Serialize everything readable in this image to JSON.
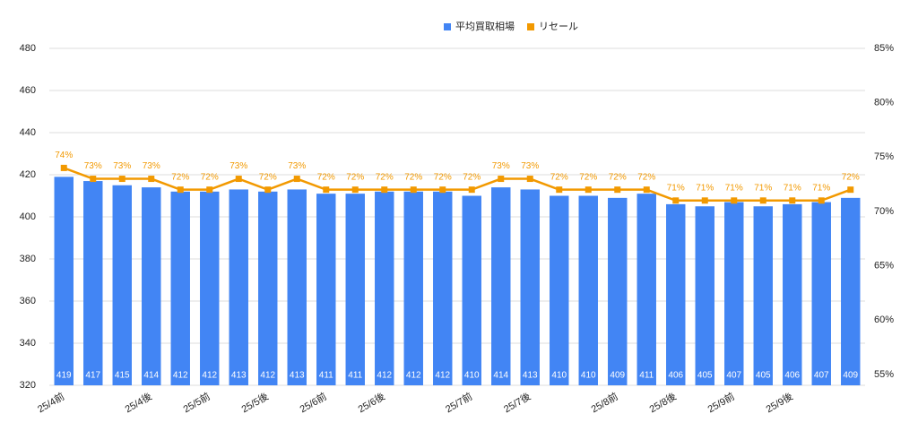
{
  "chart_data": {
    "type": "bar_line",
    "categories": [
      "25/4前",
      null,
      null,
      "25/4後",
      null,
      "25/5前",
      null,
      "25/5後",
      null,
      "25/6前",
      null,
      "25/6後",
      null,
      null,
      "25/7前",
      null,
      "25/7後",
      null,
      null,
      "25/8前",
      null,
      "25/8後",
      null,
      "25/9前",
      null,
      "25/9後",
      null,
      null
    ],
    "series": [
      {
        "name": "平均買取相場",
        "color": "#4285f4",
        "type": "bar",
        "values": [
          419,
          417,
          415,
          414,
          412,
          412,
          413,
          412,
          413,
          411,
          411,
          412,
          412,
          412,
          410,
          414,
          413,
          410,
          410,
          409,
          411,
          406,
          405,
          407,
          405,
          406,
          407,
          409
        ]
      },
      {
        "name": "リセール",
        "color": "#f29900",
        "type": "line",
        "axis": "y2",
        "values": [
          74,
          73,
          73,
          73,
          72,
          72,
          73,
          72,
          73,
          72,
          72,
          72,
          72,
          72,
          72,
          73,
          73,
          72,
          72,
          72,
          72,
          71,
          71,
          71,
          71,
          71,
          71,
          72
        ],
        "value_labels": [
          "74%",
          "73%",
          "73%",
          "73%",
          "72%",
          "72%",
          "73%",
          "72%",
          "73%",
          "72%",
          "72%",
          "72%",
          "72%",
          "72%",
          "72%",
          "73%",
          "73%",
          "72%",
          "72%",
          "72%",
          "72%",
          "71%",
          "71%",
          "71%",
          "71%",
          "71%",
          "71%",
          "72%"
        ]
      }
    ],
    "ylim": [
      320,
      480
    ],
    "yticks": [
      320,
      340,
      360,
      380,
      400,
      420,
      440,
      460,
      480
    ],
    "y2lim": [
      54,
      85
    ],
    "y2ticks": [
      {
        "value": 55,
        "label": "55%"
      },
      {
        "value": 60,
        "label": "60%"
      },
      {
        "value": 65,
        "label": "65%"
      },
      {
        "value": 70,
        "label": "70%"
      },
      {
        "value": 75,
        "label": "75%"
      },
      {
        "value": 80,
        "label": "80%"
      },
      {
        "value": 85,
        "label": "85%"
      }
    ],
    "grid": true,
    "legend": "top"
  }
}
